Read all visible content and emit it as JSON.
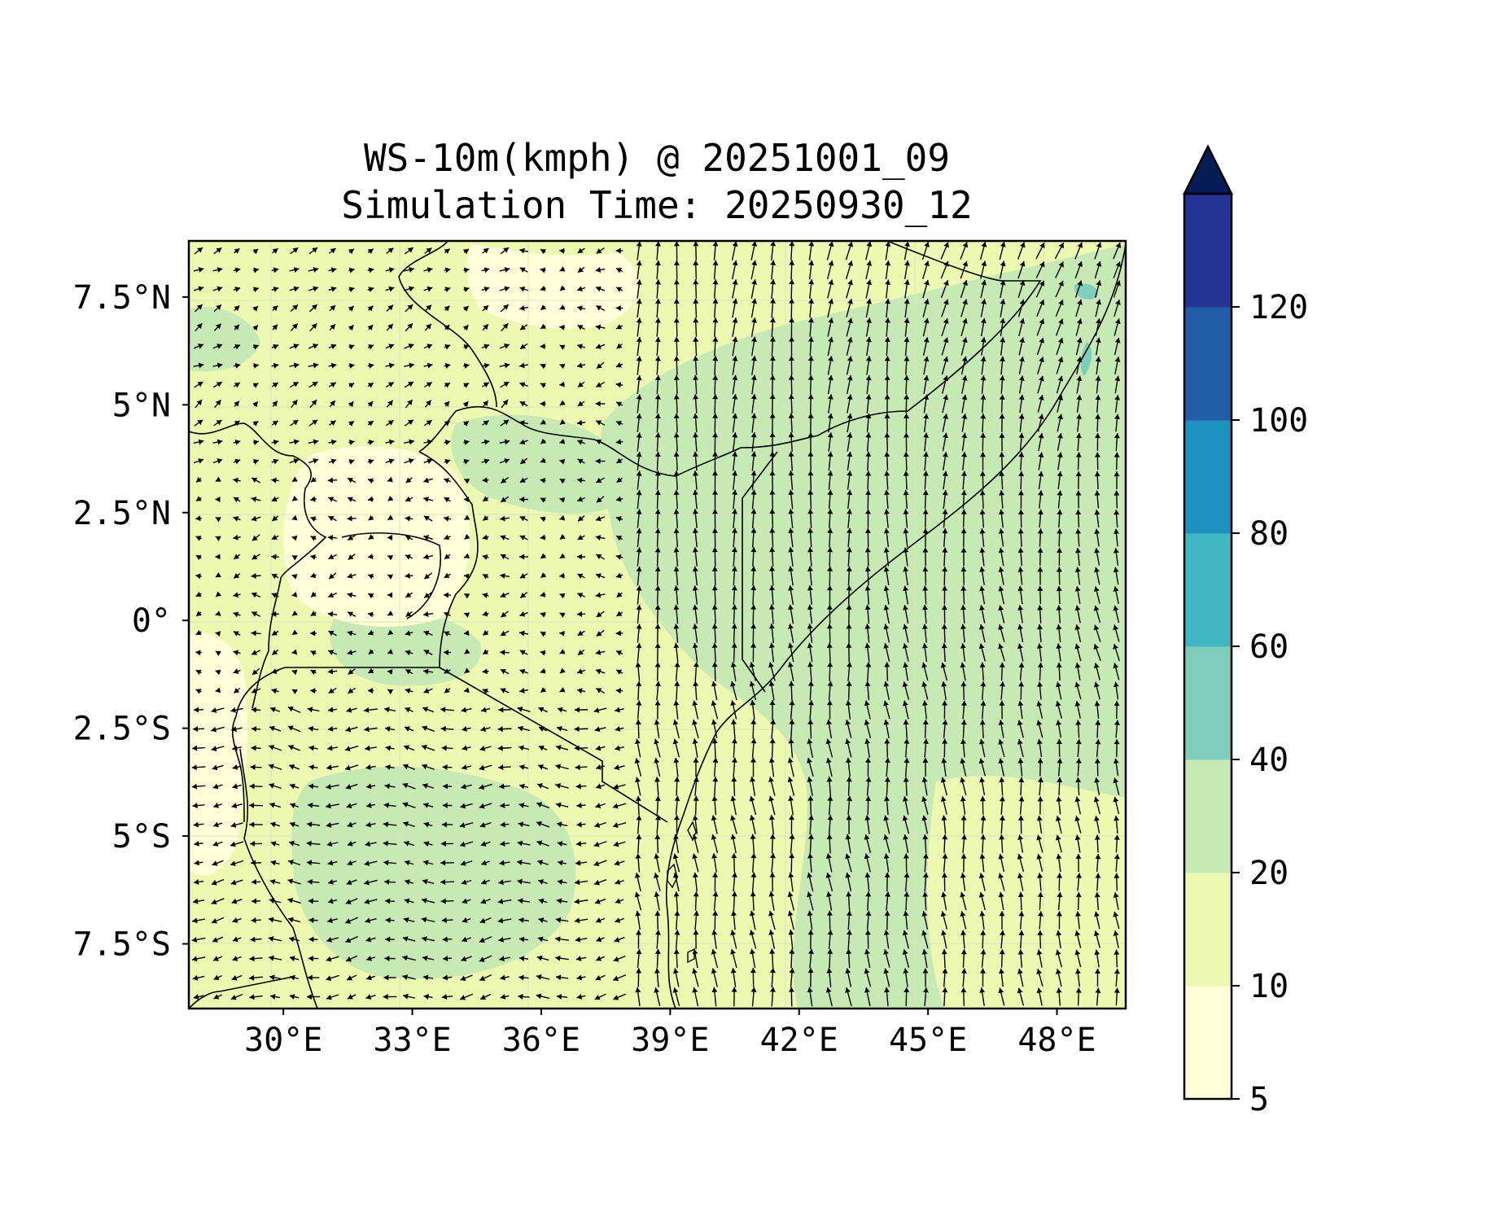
{
  "title": {
    "line1": "WS-10m(kmph) @ 20251001_09",
    "line2": "Simulation Time: 20250930_12"
  },
  "map": {
    "lon_range": [
      27.8,
      49.6
    ],
    "lat_range": [
      -9.0,
      8.8
    ],
    "x_ticks": [
      {
        "value": 30,
        "label": "30°E"
      },
      {
        "value": 33,
        "label": "33°E"
      },
      {
        "value": 36,
        "label": "36°E"
      },
      {
        "value": 39,
        "label": "39°E"
      },
      {
        "value": 42,
        "label": "42°E"
      },
      {
        "value": 45,
        "label": "45°E"
      },
      {
        "value": 48,
        "label": "48°E"
      }
    ],
    "y_ticks": [
      {
        "value": 7.5,
        "label": "7.5°N"
      },
      {
        "value": 5,
        "label": "5°N"
      },
      {
        "value": 2.5,
        "label": "2.5°N"
      },
      {
        "value": 0,
        "label": "0°"
      },
      {
        "value": -2.5,
        "label": "2.5°S"
      },
      {
        "value": -5,
        "label": "5°S"
      },
      {
        "value": -7.5,
        "label": "7.5°S"
      }
    ],
    "field": "10 m wind speed (filled contours) with wind direction arrows",
    "gridlines": true
  },
  "colorbar": {
    "levels": [
      5,
      10,
      20,
      40,
      60,
      80,
      100,
      120
    ],
    "labels": [
      "5",
      "10",
      "20",
      "40",
      "60",
      "80",
      "100",
      "120"
    ],
    "colors": [
      "#ffffd9",
      "#edf8b1",
      "#c7e9b4",
      "#7fcdbb",
      "#41b6c4",
      "#1d91c0",
      "#225ea8",
      "#253494"
    ],
    "extend_color": "#081d58",
    "extend": "max"
  }
}
